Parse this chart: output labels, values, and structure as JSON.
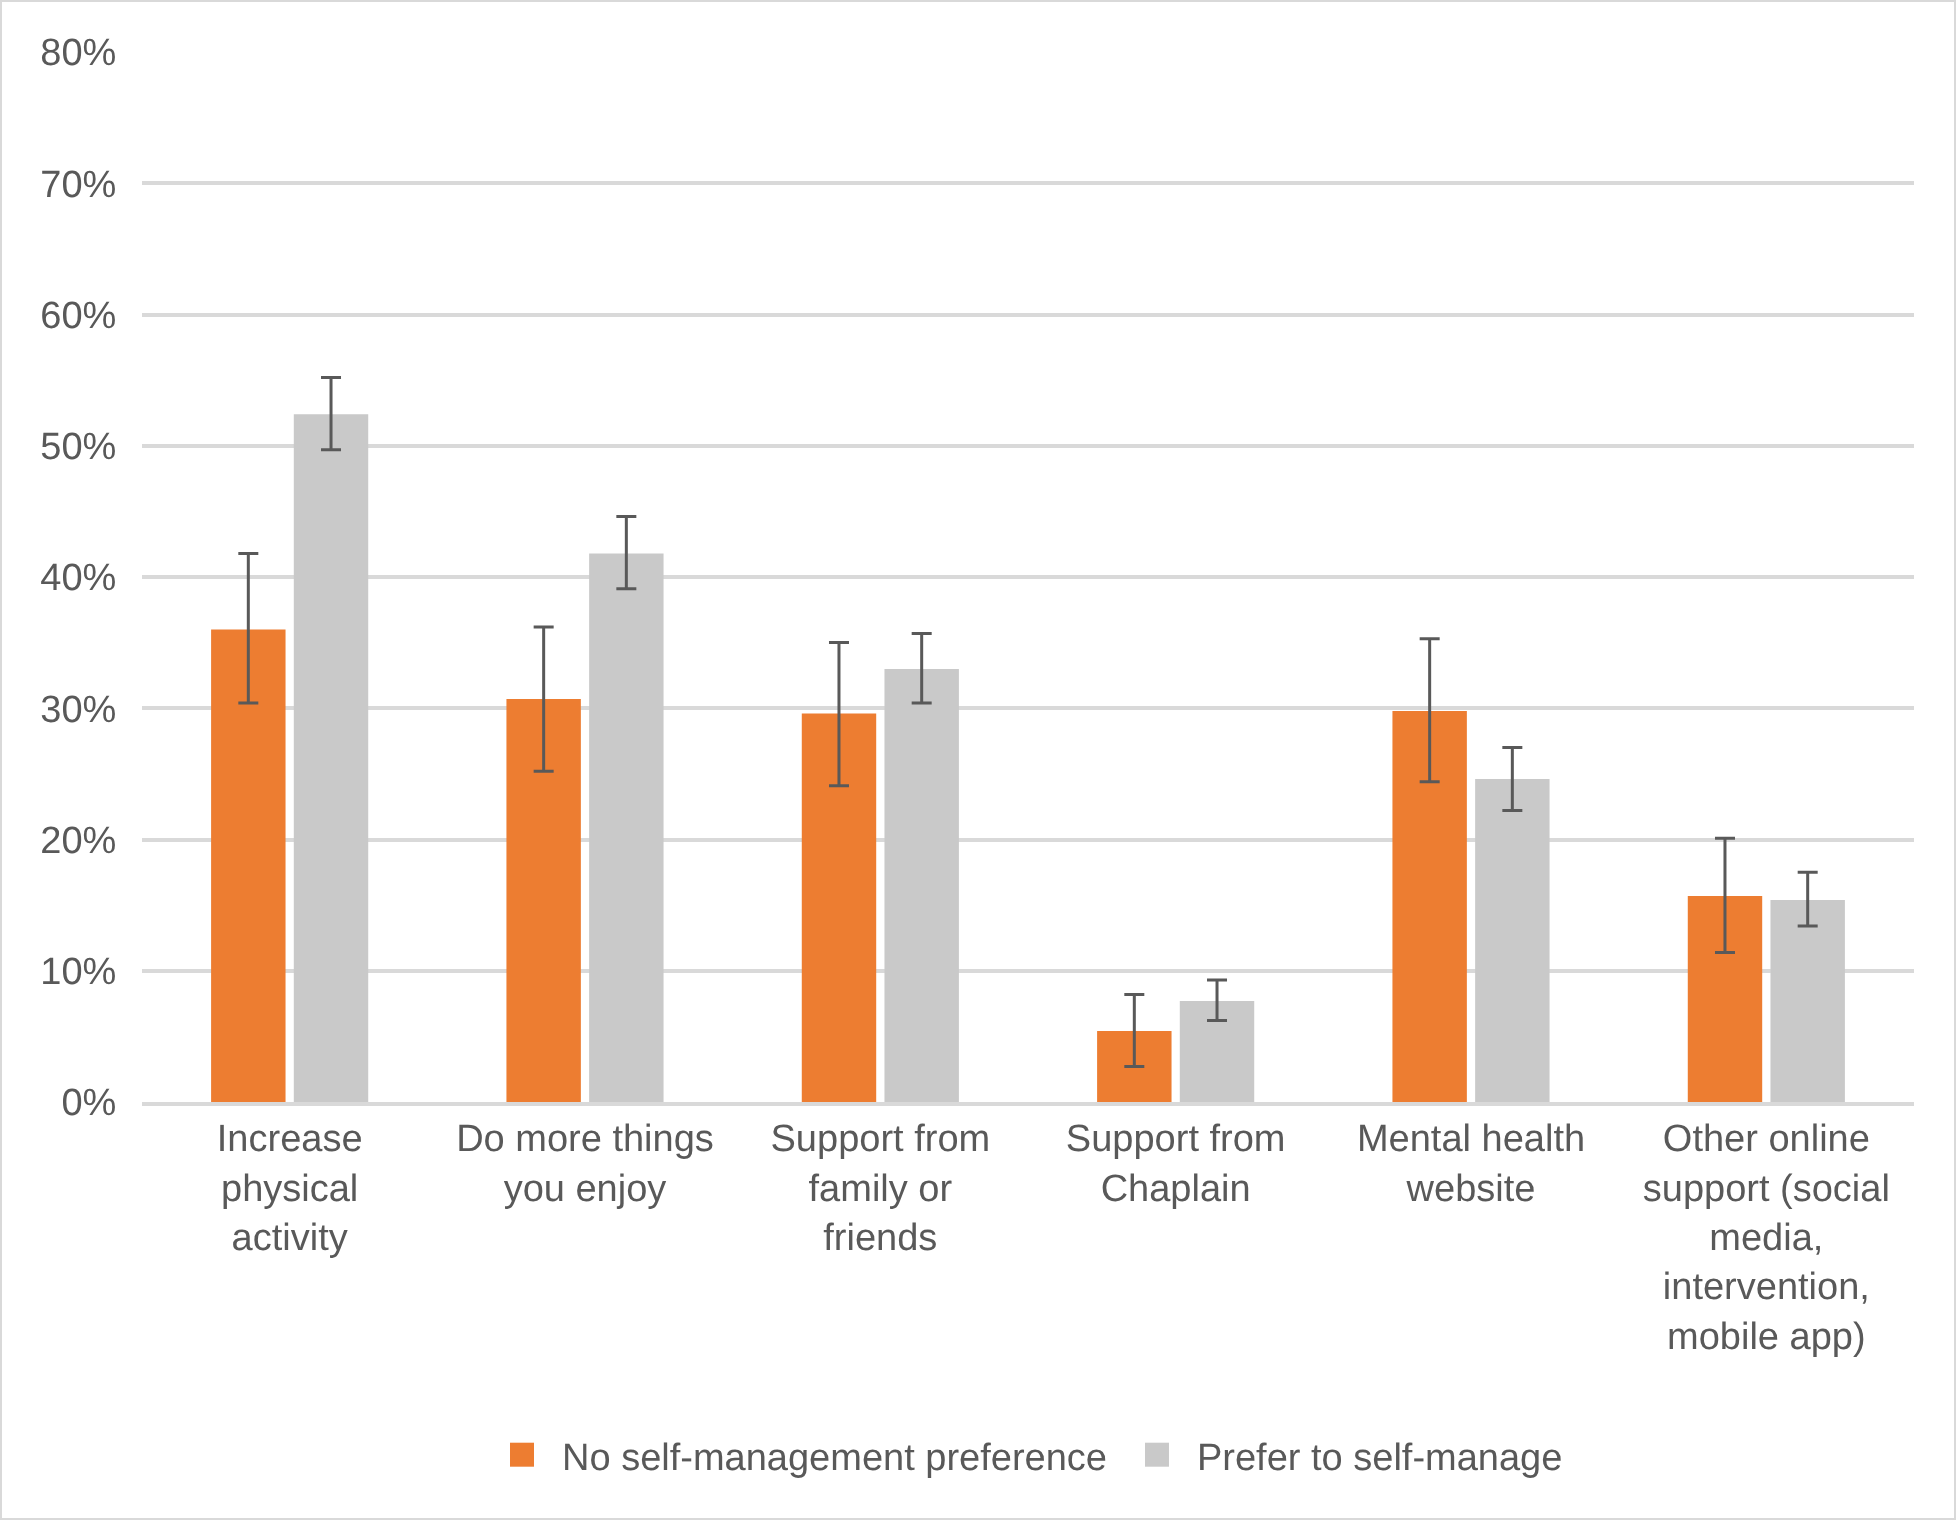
{
  "chart_data": {
    "type": "bar",
    "categories": [
      "Increase physical activity",
      "Do more things you enjoy",
      "Support from family or friends",
      "Support from Chaplain",
      "Mental health website",
      "Other online support (social media, intervention, mobile app)"
    ],
    "series": [
      {
        "name": "No self-management preference",
        "color": "#ed7d31",
        "values": [
          36.0,
          30.7,
          29.6,
          5.4,
          29.8,
          15.7
        ],
        "errors": [
          [
            30.4,
            41.8
          ],
          [
            25.2,
            36.2
          ],
          [
            24.1,
            35.0
          ],
          [
            2.7,
            8.2
          ],
          [
            24.4,
            35.3
          ],
          [
            11.4,
            20.1
          ]
        ]
      },
      {
        "name": "Prefer to self-manage",
        "color": "#c9c9c9",
        "values": [
          52.4,
          41.8,
          33.0,
          7.7,
          24.6,
          15.4
        ],
        "errors": [
          [
            49.7,
            55.2
          ],
          [
            39.1,
            44.6
          ],
          [
            30.4,
            35.7
          ],
          [
            6.2,
            9.3
          ],
          [
            22.2,
            27.0
          ],
          [
            13.4,
            17.5
          ]
        ]
      }
    ],
    "ylim": [
      0,
      80
    ],
    "yticks": [
      {
        "value": 0,
        "label": "0%"
      },
      {
        "value": 10,
        "label": "10%"
      },
      {
        "value": 20,
        "label": "20%"
      },
      {
        "value": 30,
        "label": "30%"
      },
      {
        "value": 40,
        "label": "40%"
      },
      {
        "value": 50,
        "label": "50%"
      },
      {
        "value": 60,
        "label": "60%"
      },
      {
        "value": 70,
        "label": "70%"
      },
      {
        "value": 80,
        "label": "80%"
      }
    ],
    "grid": "y",
    "legend": "bottom"
  }
}
